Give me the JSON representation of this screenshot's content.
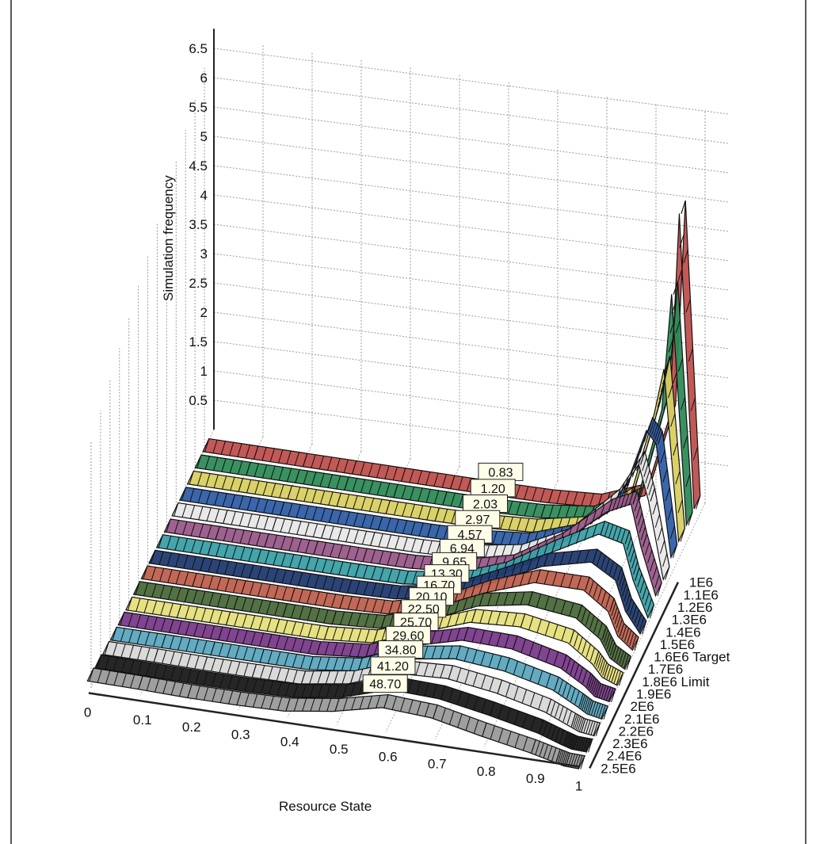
{
  "chart_data": {
    "type": "3d-surface",
    "ylabel": "Simulation frequency",
    "xlabel": "Resource State",
    "z_axis_ticks": [
      "0.5",
      "1",
      "1.5",
      "2",
      "2.5",
      "3",
      "3.5",
      "4",
      "4.5",
      "5",
      "5.5",
      "6",
      "6.5"
    ],
    "x_axis_ticks": [
      "0",
      "0.1",
      "0.2",
      "0.3",
      "0.4",
      "0.5",
      "0.6",
      "0.7",
      "0.8",
      "0.9",
      "1"
    ],
    "depth_axis_ticks": [
      "1E6",
      "1.1E6",
      "1.2E6",
      "1.3E6",
      "1.4E6",
      "1.5E6",
      "1.6E6 Target",
      "1.7E6",
      "1.8E6 Limit",
      "1.9E6",
      "2E6",
      "2.1E6",
      "2.2E6",
      "2.3E6",
      "2.4E6",
      "2.5E6"
    ],
    "series": [
      {
        "label": "0.83",
        "depth": "1E6",
        "color": "#c0504d",
        "values": [
          0.02,
          0.02,
          0.02,
          0.02,
          0.02,
          0.02,
          0.02,
          0.03,
          0.08,
          0.4,
          1.8,
          5.3,
          0.3
        ]
      },
      {
        "label": "1.20",
        "depth": "1.1E6",
        "color": "#2e8b57",
        "values": [
          0.02,
          0.02,
          0.02,
          0.02,
          0.02,
          0.02,
          0.02,
          0.05,
          0.15,
          0.6,
          2.2,
          4.2,
          0.3
        ]
      },
      {
        "label": "2.03",
        "depth": "1.2E6",
        "color": "#d8d060",
        "values": [
          0.02,
          0.02,
          0.02,
          0.02,
          0.02,
          0.02,
          0.03,
          0.08,
          0.25,
          0.9,
          2.4,
          3.2,
          0.3
        ]
      },
      {
        "label": "2.97",
        "depth": "1.3E6",
        "color": "#2f5ea8",
        "values": [
          0.02,
          0.02,
          0.02,
          0.02,
          0.02,
          0.02,
          0.04,
          0.12,
          0.4,
          1.2,
          2.4,
          2.2,
          0.3
        ]
      },
      {
        "label": "4.57",
        "depth": "1.4E6",
        "color": "#e8e8e8",
        "values": [
          0.03,
          0.03,
          0.03,
          0.03,
          0.03,
          0.03,
          0.06,
          0.2,
          0.6,
          1.4,
          2.1,
          1.5,
          0.2
        ]
      },
      {
        "label": "6.94",
        "depth": "1.5E6",
        "color": "#9a5a8a",
        "values": [
          0.03,
          0.03,
          0.03,
          0.03,
          0.03,
          0.04,
          0.1,
          0.3,
          0.8,
          1.5,
          1.7,
          1.0,
          0.2
        ]
      },
      {
        "label": "9.65",
        "depth": "1.6E6 Target",
        "color": "#3aa0a8",
        "values": [
          0.04,
          0.04,
          0.04,
          0.04,
          0.04,
          0.05,
          0.15,
          0.45,
          0.95,
          1.4,
          1.3,
          0.7,
          0.1
        ]
      },
      {
        "label": "13.30",
        "depth": "1.7E6",
        "color": "#203a70",
        "values": [
          0.05,
          0.05,
          0.05,
          0.05,
          0.05,
          0.07,
          0.22,
          0.6,
          1.0,
          1.2,
          0.95,
          0.45,
          0.1
        ]
      },
      {
        "label": "16.70",
        "depth": "1.8E6 Limit",
        "color": "#c0604d",
        "values": [
          0.06,
          0.06,
          0.06,
          0.06,
          0.06,
          0.09,
          0.3,
          0.7,
          1.0,
          1.0,
          0.7,
          0.3,
          0.1
        ]
      },
      {
        "label": "20.10",
        "depth": "1.9E6",
        "color": "#4a6a3a",
        "values": [
          0.07,
          0.07,
          0.07,
          0.07,
          0.07,
          0.12,
          0.38,
          0.75,
          0.9,
          0.8,
          0.5,
          0.2,
          0.05
        ]
      },
      {
        "label": "22.50",
        "depth": "2E6",
        "color": "#e6e07a",
        "values": [
          0.08,
          0.08,
          0.08,
          0.08,
          0.08,
          0.15,
          0.45,
          0.75,
          0.8,
          0.65,
          0.35,
          0.15,
          0.05
        ]
      },
      {
        "label": "25.70",
        "depth": "2.1E6",
        "color": "#7a3a8a",
        "values": [
          0.1,
          0.1,
          0.1,
          0.1,
          0.1,
          0.18,
          0.5,
          0.72,
          0.7,
          0.5,
          0.25,
          0.1,
          0.05
        ]
      },
      {
        "label": "29.60",
        "depth": "2.2E6",
        "color": "#5aa8c0",
        "values": [
          0.12,
          0.12,
          0.12,
          0.12,
          0.12,
          0.22,
          0.55,
          0.68,
          0.6,
          0.4,
          0.18,
          0.08,
          0.03
        ]
      },
      {
        "label": "34.80",
        "depth": "2.3E6",
        "color": "#d8d8d8",
        "values": [
          0.15,
          0.15,
          0.14,
          0.14,
          0.15,
          0.28,
          0.58,
          0.62,
          0.5,
          0.3,
          0.12,
          0.05,
          0.02
        ]
      },
      {
        "label": "41.20",
        "depth": "2.4E6",
        "color": "#1a1a1a",
        "values": [
          0.2,
          0.19,
          0.18,
          0.18,
          0.2,
          0.32,
          0.58,
          0.55,
          0.4,
          0.22,
          0.08,
          0.03,
          0.02
        ]
      },
      {
        "label": "48.70",
        "depth": "2.5E6",
        "color": "#9a9a9a",
        "values": [
          0.25,
          0.24,
          0.22,
          0.22,
          0.24,
          0.36,
          0.55,
          0.5,
          0.32,
          0.16,
          0.06,
          0.02,
          0.01
        ]
      }
    ],
    "x_samples": [
      0,
      0.1,
      0.2,
      0.3,
      0.4,
      0.5,
      0.6,
      0.7,
      0.8,
      0.9,
      0.95,
      0.97,
      1.0
    ],
    "zlim": [
      0,
      6.5
    ],
    "grid": true
  }
}
